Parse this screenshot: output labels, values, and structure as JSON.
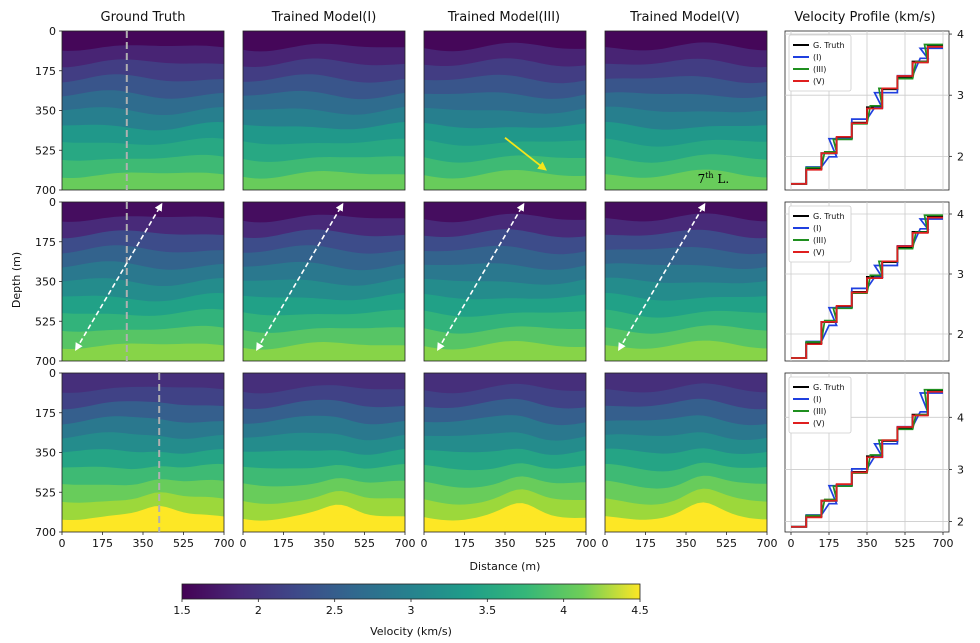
{
  "chart_data": {
    "type": "heatmap",
    "column_titles": [
      "Ground Truth",
      "Trained Model(I)",
      "Trained Model(III)",
      "Trained Model(V)",
      "Velocity Profile (km/s)"
    ],
    "xlabel": "Distance (m)",
    "ylabel": "Depth (m)",
    "x_ticks": [
      "0",
      "175",
      "350",
      "525",
      "700"
    ],
    "y_ticks": [
      "0",
      "175",
      "350",
      "525",
      "700"
    ],
    "xlim": [
      0,
      700
    ],
    "ylim": [
      700,
      0
    ],
    "annotation": "7th L.",
    "annotation_base": "7",
    "annotation_sup": "th",
    "annotation_rest": " L.",
    "colorbar": {
      "label": "Velocity (km/s)",
      "ticks": [
        "1.5",
        "2",
        "2.5",
        "3",
        "3.5",
        "4",
        "4.5"
      ],
      "range": [
        1.5,
        4.5
      ],
      "colormap": "viridis"
    },
    "rows": [
      {
        "layers": [
          1.55,
          1.8,
          2.05,
          2.3,
          2.55,
          2.8,
          3.1,
          3.3,
          3.55,
          3.8
        ],
        "top_band": "flat",
        "profile_x_m": 280,
        "profile_yticks": [
          "2",
          "3",
          "4"
        ],
        "profile_ylim": [
          1.45,
          4.05
        ]
      },
      {
        "layers": [
          1.6,
          1.85,
          2.2,
          2.45,
          2.7,
          2.95,
          3.2,
          3.45,
          3.7,
          3.95
        ],
        "top_band": "flat",
        "profile_x_m": 280,
        "profile_yticks": [
          "2",
          "3",
          "4"
        ],
        "profile_ylim": [
          1.55,
          4.2
        ]
      },
      {
        "layers": [
          1.9,
          2.1,
          2.4,
          2.7,
          2.95,
          3.25,
          3.55,
          3.8,
          4.05,
          4.5
        ],
        "top_band": "dome",
        "profile_x_m": 420,
        "profile_yticks": [
          "2",
          "3",
          "4"
        ],
        "profile_ylim": [
          1.8,
          4.85
        ]
      }
    ],
    "legend": [
      "G. Truth",
      "(I)",
      "(III)",
      "(V)"
    ],
    "series_colors": {
      "G. Truth": "#000000",
      "(I)": "#1f3fdf",
      "(III)": "#1f8f1f",
      "(V)": "#df1f1f"
    },
    "profile_xticks": [
      "0",
      "175",
      "350",
      "525",
      "700"
    ]
  }
}
